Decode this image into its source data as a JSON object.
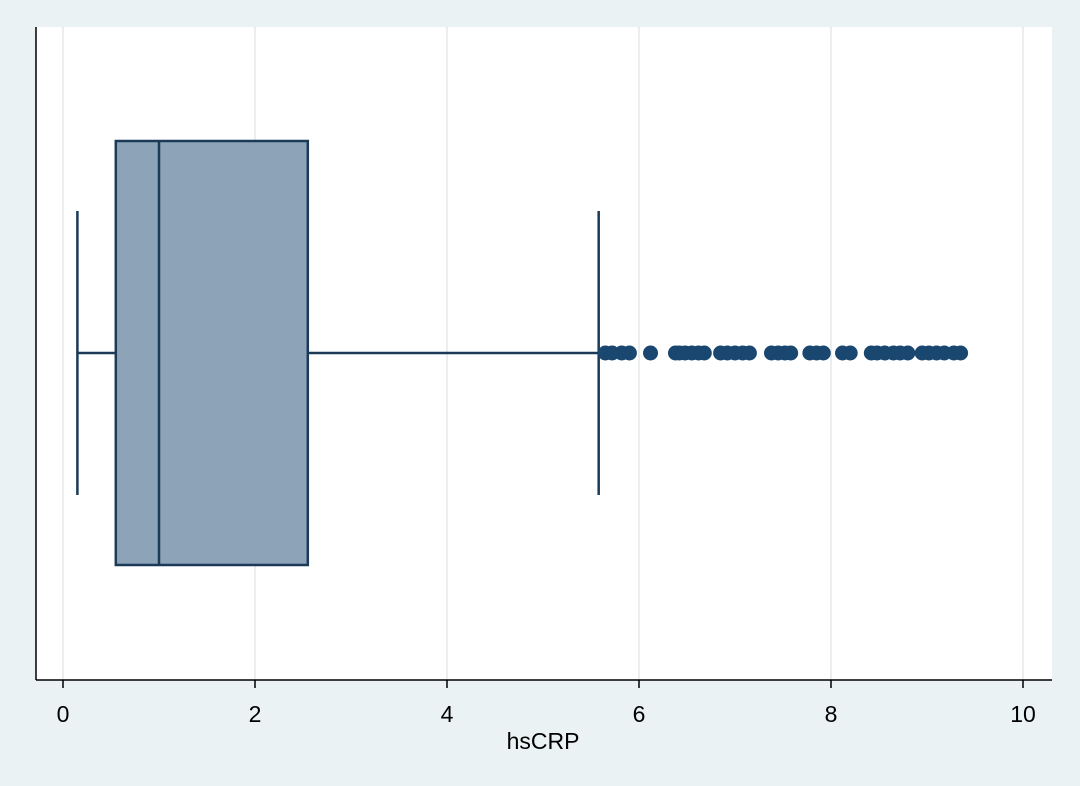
{
  "chart_data": {
    "type": "box",
    "orientation": "horizontal",
    "title": "",
    "xlabel": "hsCRP",
    "ylabel": "",
    "xlim": [
      0,
      10
    ],
    "xticks": [
      0,
      2,
      4,
      6,
      8,
      10
    ],
    "xtick_labels": [
      "0",
      "2",
      "4",
      "6",
      "8",
      "10"
    ],
    "grid": "vertical",
    "box": {
      "lower_whisker": 0.15,
      "q1": 0.55,
      "median": 1.0,
      "q3": 2.55,
      "upper_whisker": 5.58
    },
    "outliers": [
      5.65,
      5.72,
      5.82,
      5.9,
      6.12,
      6.38,
      6.42,
      6.48,
      6.55,
      6.62,
      6.68,
      6.85,
      6.92,
      7.0,
      7.08,
      7.15,
      7.38,
      7.45,
      7.52,
      7.58,
      7.78,
      7.85,
      7.92,
      8.12,
      8.2,
      8.42,
      8.48,
      8.56,
      8.65,
      8.72,
      8.8,
      8.95,
      9.02,
      9.1,
      9.18,
      9.28,
      9.35
    ],
    "colors": {
      "box_fill": "#8da3b8",
      "box_stroke": "#1a3a58",
      "marker": "#1a476f",
      "grid": "#e4e9ea",
      "plot_background": "#ffffff",
      "outer_background": "#eaf2f3"
    }
  }
}
